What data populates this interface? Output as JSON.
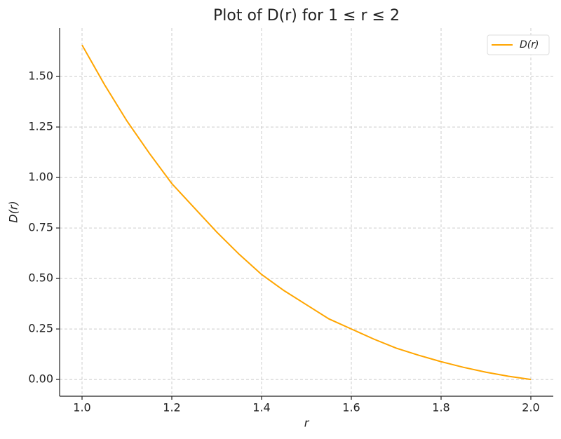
{
  "chart_data": {
    "type": "line",
    "title": "Plot of D(r) for 1 ≤ r ≤ 2",
    "x_label": "r",
    "y_label": "D(r)",
    "x": [
      1.0,
      1.05,
      1.1,
      1.15,
      1.2,
      1.25,
      1.3,
      1.35,
      1.4,
      1.45,
      1.5,
      1.55,
      1.6,
      1.65,
      1.7,
      1.75,
      1.8,
      1.85,
      1.9,
      1.95,
      2.0
    ],
    "series": [
      {
        "name": "D(r)",
        "color": "#ffa500",
        "values": [
          1.656,
          1.46,
          1.28,
          1.12,
          0.97,
          0.85,
          0.73,
          0.62,
          0.52,
          0.44,
          0.37,
          0.3,
          0.25,
          0.2,
          0.155,
          0.12,
          0.088,
          0.06,
          0.036,
          0.016,
          0.0
        ]
      }
    ],
    "xlim": [
      0.95,
      2.05
    ],
    "ylim": [
      -0.083,
      1.74
    ],
    "xticks": [
      {
        "value": 1.0,
        "label": "1.0"
      },
      {
        "value": 1.2,
        "label": "1.2"
      },
      {
        "value": 1.4,
        "label": "1.4"
      },
      {
        "value": 1.6,
        "label": "1.6"
      },
      {
        "value": 1.8,
        "label": "1.8"
      },
      {
        "value": 2.0,
        "label": "2.0"
      }
    ],
    "yticks": [
      {
        "value": 0,
        "label": "0.00"
      },
      {
        "value": 0.25,
        "label": "0.25"
      },
      {
        "value": 0.5,
        "label": "0.50"
      },
      {
        "value": 0.75,
        "label": "0.75"
      },
      {
        "value": 1.0,
        "label": "1.00"
      },
      {
        "value": 1.25,
        "label": "1.25"
      },
      {
        "value": 1.5,
        "label": "1.50"
      }
    ],
    "grid": true,
    "legend": "upper right"
  }
}
